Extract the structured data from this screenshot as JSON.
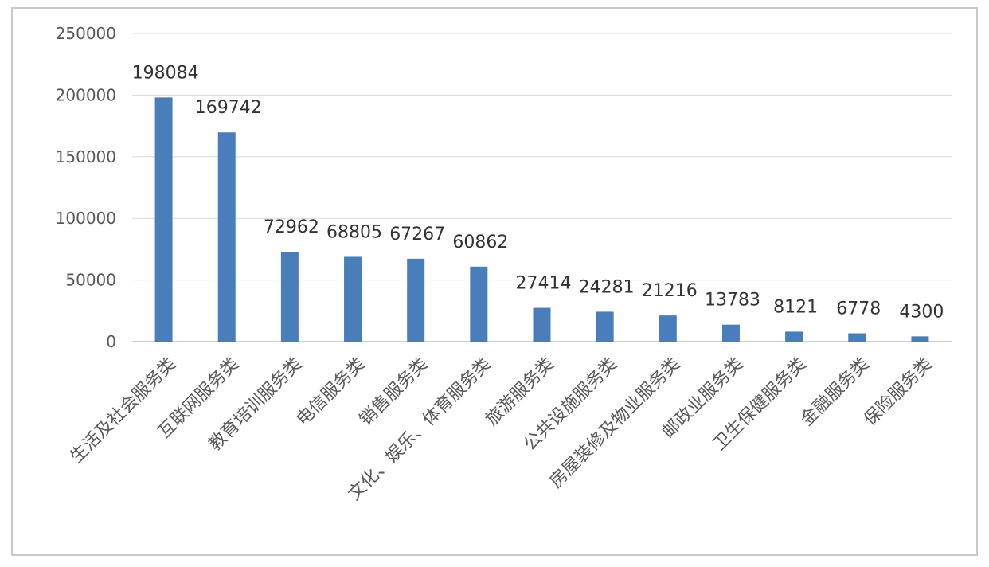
{
  "chart_data": {
    "type": "bar",
    "title": "",
    "xlabel": "",
    "ylabel": "",
    "ylim": [
      0,
      250000
    ],
    "yticks": [
      0,
      50000,
      100000,
      150000,
      200000,
      250000
    ],
    "grid": true,
    "legend": "none",
    "bar_color": "#4a7ebb",
    "categories": [
      "生活及社会服务类",
      "互联网服务类",
      "教育培训服务类",
      "电信服务类",
      "销售服务类",
      "文化、娱乐、体育服务类",
      "旅游服务类",
      "公共设施服务类",
      "房屋装修及物业服务类",
      "邮政业服务类",
      "卫生保健服务类",
      "金融服务类",
      "保险服务类"
    ],
    "values": [
      198084,
      169742,
      72962,
      68805,
      67267,
      60862,
      27414,
      24281,
      21216,
      13783,
      8121,
      6778,
      4300
    ]
  }
}
